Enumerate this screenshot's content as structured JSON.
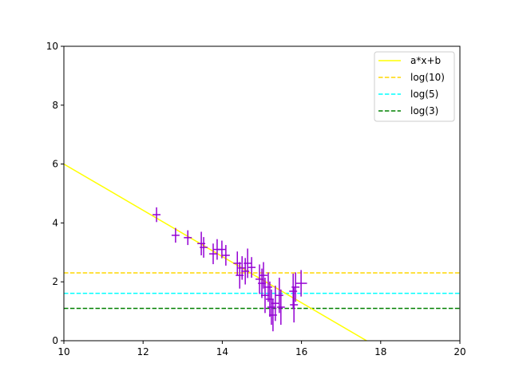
{
  "chart_data": {
    "type": "scatter",
    "title": "",
    "xlabel": "",
    "ylabel": "",
    "xlim": [
      10,
      20
    ],
    "ylim": [
      0,
      10
    ],
    "xticks": [
      10,
      12,
      14,
      16,
      18,
      20
    ],
    "yticks": [
      0,
      2,
      4,
      6,
      8,
      10
    ],
    "grid": false,
    "legend_placement": "top-right",
    "fit_line": {
      "name": "a*x+b",
      "a": -0.785,
      "b": 13.85,
      "color": "#ffff00"
    },
    "hlines": [
      {
        "name": "log(10)",
        "y": 2.303,
        "color": "#ffd700"
      },
      {
        "name": "log(5)",
        "y": 1.609,
        "color": "#00ffff"
      },
      {
        "name": "log(3)",
        "y": 1.099,
        "color": "#008000"
      }
    ],
    "points_color": "#9400d3",
    "points": [
      {
        "x": 12.34,
        "y": 4.28,
        "yerr": 0.25,
        "xerr": 0.1
      },
      {
        "x": 12.82,
        "y": 3.58,
        "yerr": 0.25,
        "xerr": 0.1
      },
      {
        "x": 13.13,
        "y": 3.5,
        "yerr": 0.25,
        "xerr": 0.1
      },
      {
        "x": 13.47,
        "y": 3.3,
        "yerr": 0.4,
        "xerr": 0.1
      },
      {
        "x": 13.53,
        "y": 3.17,
        "yerr": 0.35,
        "xerr": 0.1
      },
      {
        "x": 13.77,
        "y": 2.95,
        "yerr": 0.35,
        "xerr": 0.1
      },
      {
        "x": 13.87,
        "y": 3.1,
        "yerr": 0.35,
        "xerr": 0.1
      },
      {
        "x": 13.99,
        "y": 3.1,
        "yerr": 0.3,
        "xerr": 0.1
      },
      {
        "x": 14.09,
        "y": 2.9,
        "yerr": 0.35,
        "xerr": 0.1
      },
      {
        "x": 14.38,
        "y": 2.63,
        "yerr": 0.4,
        "xerr": 0.1
      },
      {
        "x": 14.44,
        "y": 2.22,
        "yerr": 0.45,
        "xerr": 0.1
      },
      {
        "x": 14.5,
        "y": 2.47,
        "yerr": 0.4,
        "xerr": 0.1
      },
      {
        "x": 14.58,
        "y": 2.36,
        "yerr": 0.45,
        "xerr": 0.1
      },
      {
        "x": 14.64,
        "y": 2.63,
        "yerr": 0.5,
        "xerr": 0.1
      },
      {
        "x": 14.74,
        "y": 2.49,
        "yerr": 0.35,
        "xerr": 0.1
      },
      {
        "x": 14.94,
        "y": 2.09,
        "yerr": 0.5,
        "xerr": 0.1
      },
      {
        "x": 15.0,
        "y": 1.95,
        "yerr": 0.5,
        "xerr": 0.1
      },
      {
        "x": 15.04,
        "y": 2.22,
        "yerr": 0.45,
        "xerr": 0.1
      },
      {
        "x": 15.08,
        "y": 1.54,
        "yerr": 0.6,
        "xerr": 0.1
      },
      {
        "x": 15.16,
        "y": 1.82,
        "yerr": 0.5,
        "xerr": 0.1
      },
      {
        "x": 15.2,
        "y": 1.41,
        "yerr": 0.6,
        "xerr": 0.1
      },
      {
        "x": 15.24,
        "y": 1.14,
        "yerr": 0.6,
        "xerr": 0.1
      },
      {
        "x": 15.28,
        "y": 0.87,
        "yerr": 0.55,
        "xerr": 0.1
      },
      {
        "x": 15.34,
        "y": 1.27,
        "yerr": 0.6,
        "xerr": 0.1
      },
      {
        "x": 15.44,
        "y": 1.54,
        "yerr": 0.6,
        "xerr": 0.1
      },
      {
        "x": 15.48,
        "y": 1.14,
        "yerr": 0.6,
        "xerr": 0.1
      },
      {
        "x": 15.79,
        "y": 1.68,
        "yerr": 0.6,
        "xerr": 0.1
      },
      {
        "x": 15.81,
        "y": 1.22,
        "yerr": 0.6,
        "xerr": 0.1
      },
      {
        "x": 15.85,
        "y": 1.82,
        "yerr": 0.5,
        "xerr": 0.1
      },
      {
        "x": 15.99,
        "y": 1.95,
        "yerr": 0.45,
        "xerr": 0.15
      }
    ]
  }
}
